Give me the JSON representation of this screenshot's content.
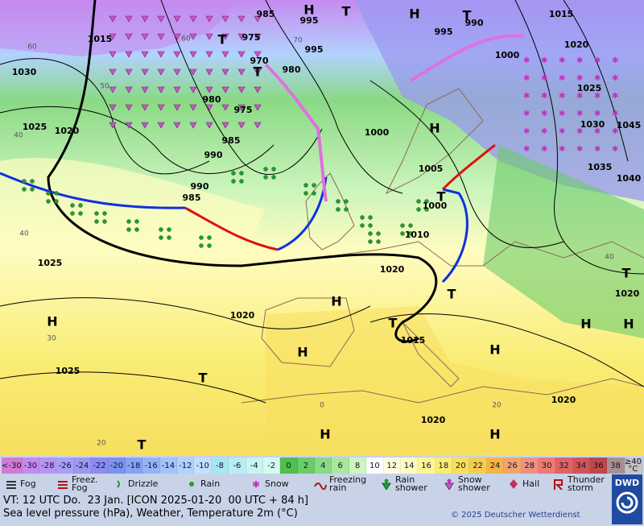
{
  "pressure_labels": [
    985,
    995,
    1015,
    975,
    970,
    980,
    995,
    995,
    990,
    1015,
    1020,
    1000,
    1030,
    1025,
    980,
    975,
    1025,
    1020,
    985,
    990,
    1000,
    1030,
    1045,
    1035,
    1040,
    990,
    985,
    1005,
    1000,
    1010,
    1025,
    1020,
    1020,
    1020,
    1015,
    1025,
    1020,
    1020
  ],
  "temperature_labels": [
    60,
    60,
    70,
    50,
    40,
    40,
    30,
    20,
    0,
    20,
    40
  ],
  "centers": [
    "H",
    "T",
    "H",
    "T",
    "T",
    "T",
    "H",
    "T",
    "H",
    "H",
    "H",
    "T",
    "T",
    "H",
    "H",
    "T",
    "T",
    "H",
    "H",
    "H",
    "T"
  ],
  "scale": [
    {
      "label": "<-30",
      "color": "#d27ad6"
    },
    {
      "label": "-30",
      "color": "#c58af0"
    },
    {
      "label": "-28",
      "color": "#b795f3"
    },
    {
      "label": "-26",
      "color": "#a8a0f6"
    },
    {
      "label": "-24",
      "color": "#9b98f2"
    },
    {
      "label": "-22",
      "color": "#8a8cf0"
    },
    {
      "label": "-20",
      "color": "#7d93f0"
    },
    {
      "label": "-18",
      "color": "#86a4f5"
    },
    {
      "label": "-16",
      "color": "#95b4f8"
    },
    {
      "label": "-14",
      "color": "#a3c3fb"
    },
    {
      "label": "-12",
      "color": "#b2d2fd"
    },
    {
      "label": "-10",
      "color": "#c2e0ff"
    },
    {
      "label": "-8",
      "color": "#a8e6f2"
    },
    {
      "label": "-6",
      "color": "#b8eef2"
    },
    {
      "label": "-4",
      "color": "#c7f5f0"
    },
    {
      "label": "-2",
      "color": "#d5fbf0"
    },
    {
      "label": "0",
      "color": "#4fbf4f"
    },
    {
      "label": "2",
      "color": "#6ccc6a"
    },
    {
      "label": "4",
      "color": "#8ad985"
    },
    {
      "label": "6",
      "color": "#abe79f"
    },
    {
      "label": "8",
      "color": "#cdf5bd"
    },
    {
      "label": "10",
      "color": "#ffffff"
    },
    {
      "label": "12",
      "color": "#ffffe0"
    },
    {
      "label": "14",
      "color": "#fffcc0"
    },
    {
      "label": "16",
      "color": "#fff597"
    },
    {
      "label": "18",
      "color": "#f9ec73"
    },
    {
      "label": "20",
      "color": "#f7df5e"
    },
    {
      "label": "22",
      "color": "#f6cd4e"
    },
    {
      "label": "24",
      "color": "#f5b446"
    },
    {
      "label": "26",
      "color": "#f2a46e"
    },
    {
      "label": "28",
      "color": "#f09080"
    },
    {
      "label": "30",
      "color": "#ee7a74"
    },
    {
      "label": "32",
      "color": "#de6464"
    },
    {
      "label": "34",
      "color": "#cf5656"
    },
    {
      "label": "36",
      "color": "#be4848"
    },
    {
      "label": "38",
      "color": "#a89090"
    },
    {
      "label": "≥40 °C",
      "color": "#c4c4c4"
    }
  ],
  "legend": [
    "Fog",
    "Freez. Fog",
    "Drizzle",
    "Rain",
    "Snow",
    "Freezing rain",
    "Rain shower",
    "Snow shower",
    "Hail",
    "Thunder storm"
  ],
  "valid_time": "VT: 12 UTC Do.  23 Jan. [ICON 2025-01-20  00 UTC + 84 h]",
  "description": "Sea level pressure (hPa), Weather, Temperature 2m (°C)",
  "copyright": "© 2025 Deutscher Wetterdienst",
  "logo": "DWD"
}
